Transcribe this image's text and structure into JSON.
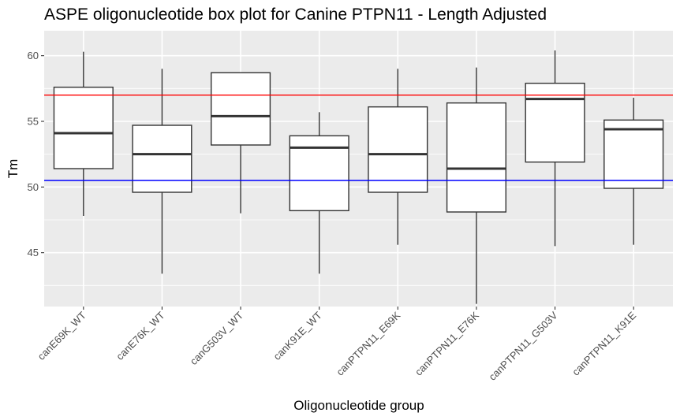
{
  "chart_data": {
    "type": "box",
    "title": "ASPE oligonucleotide box plot for Canine PTPN11 - Length Adjusted",
    "xlabel": "Oligonucleotide group",
    "ylabel": "Tm",
    "ylim": [
      40.9,
      61.9
    ],
    "yticks": [
      45,
      50,
      55,
      60
    ],
    "grid": true,
    "reference_lines": [
      {
        "value": 57.0,
        "color": "#ff0000"
      },
      {
        "value": 50.5,
        "color": "#0000ff"
      }
    ],
    "categories": [
      "canE69K_WT",
      "canE76K_WT",
      "canG503V_WT",
      "canK91E_WT",
      "canPTPN11_E69K",
      "canPTPN11_E76K",
      "canPTPN11_G503V",
      "canPTPN11_K91E"
    ],
    "boxes": [
      {
        "min": 47.8,
        "q1": 51.4,
        "median": 54.1,
        "q3": 57.6,
        "max": 60.3
      },
      {
        "min": 43.4,
        "q1": 49.6,
        "median": 52.5,
        "q3": 54.7,
        "max": 59.0
      },
      {
        "min": 48.0,
        "q1": 53.2,
        "median": 55.4,
        "q3": 58.7,
        "max": 58.7
      },
      {
        "min": 43.4,
        "q1": 48.2,
        "median": 53.0,
        "q3": 53.9,
        "max": 55.7
      },
      {
        "min": 45.6,
        "q1": 49.6,
        "median": 52.5,
        "q3": 56.1,
        "max": 59.0
      },
      {
        "min": 41.1,
        "q1": 48.1,
        "median": 51.4,
        "q3": 56.4,
        "max": 59.1
      },
      {
        "min": 45.5,
        "q1": 51.9,
        "median": 56.7,
        "q3": 57.9,
        "max": 60.4
      },
      {
        "min": 45.6,
        "q1": 49.9,
        "median": 54.4,
        "q3": 55.1,
        "max": 56.8
      }
    ],
    "colors": {
      "panel": "#ebebeb",
      "grid": "#ffffff",
      "box_fill": "#ffffff",
      "box_line": "#333333"
    }
  }
}
